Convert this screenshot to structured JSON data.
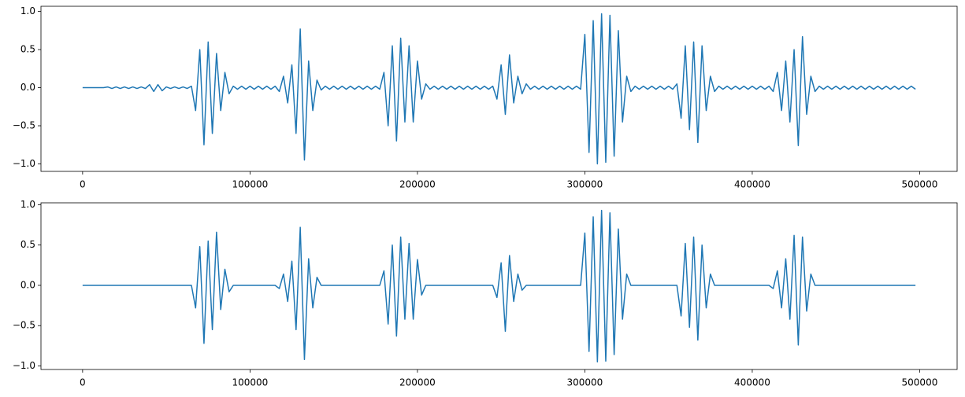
{
  "chart_data": [
    {
      "type": "line",
      "color": "#1f77b4",
      "x": [
        0,
        2500,
        5000,
        7500,
        10000,
        12500,
        15000,
        17500,
        20000,
        22500,
        25000,
        27500,
        30000,
        32500,
        35000,
        37500,
        40000,
        42500,
        45000,
        47500,
        50000,
        52500,
        55000,
        57500,
        60000,
        62500,
        65000,
        67500,
        70000,
        72500,
        75000,
        77500,
        80000,
        82500,
        85000,
        87500,
        90000,
        92500,
        95000,
        97500,
        100000,
        102500,
        105000,
        107500,
        110000,
        112500,
        115000,
        117500,
        120000,
        122500,
        125000,
        127500,
        130000,
        132500,
        135000,
        137500,
        140000,
        142500,
        145000,
        147500,
        150000,
        152500,
        155000,
        157500,
        160000,
        162500,
        165000,
        167500,
        170000,
        172500,
        175000,
        177500,
        180000,
        182500,
        185000,
        187500,
        190000,
        192500,
        195000,
        197500,
        200000,
        202500,
        205000,
        207500,
        210000,
        212500,
        215000,
        217500,
        220000,
        222500,
        225000,
        227500,
        230000,
        232500,
        235000,
        237500,
        240000,
        242500,
        245000,
        247500,
        250000,
        252500,
        255000,
        257500,
        260000,
        262500,
        265000,
        267500,
        270000,
        272500,
        275000,
        277500,
        280000,
        282500,
        285000,
        287500,
        290000,
        292500,
        295000,
        297500,
        300000,
        302500,
        305000,
        307500,
        310000,
        312500,
        315000,
        317500,
        320000,
        322500,
        325000,
        327500,
        330000,
        332500,
        335000,
        337500,
        340000,
        342500,
        345000,
        347500,
        350000,
        352500,
        355000,
        357500,
        360000,
        362500,
        365000,
        367500,
        370000,
        372500,
        375000,
        377500,
        380000,
        382500,
        385000,
        387500,
        390000,
        392500,
        395000,
        397500,
        400000,
        402500,
        405000,
        407500,
        410000,
        412500,
        415000,
        417500,
        420000,
        422500,
        425000,
        427500,
        430000,
        432500,
        435000,
        437500,
        440000,
        442500,
        445000,
        447500,
        450000,
        452500,
        455000,
        457500,
        460000,
        462500,
        465000,
        467500,
        470000,
        472500,
        475000,
        477500,
        480000,
        482500,
        485000,
        487500,
        490000,
        492500,
        495000,
        497500
      ],
      "values": [
        0,
        0,
        0,
        0,
        0,
        0,
        0.01,
        -0.01,
        0.01,
        -0.01,
        0.01,
        -0.01,
        0.01,
        -0.01,
        0.01,
        -0.01,
        0.04,
        -0.05,
        0.04,
        -0.04,
        0.01,
        -0.01,
        0.01,
        -0.01,
        0.01,
        -0.01,
        0.02,
        -0.3,
        0.5,
        -0.75,
        0.6,
        -0.6,
        0.45,
        -0.3,
        0.2,
        -0.08,
        0.02,
        -0.02,
        0.02,
        -0.02,
        0.02,
        -0.02,
        0.02,
        -0.02,
        0.02,
        -0.02,
        0.02,
        -0.05,
        0.15,
        -0.2,
        0.3,
        -0.6,
        0.77,
        -0.95,
        0.35,
        -0.3,
        0.1,
        -0.03,
        0.02,
        -0.02,
        0.02,
        -0.02,
        0.02,
        -0.02,
        0.02,
        -0.02,
        0.02,
        -0.02,
        0.02,
        -0.02,
        0.02,
        -0.02,
        0.2,
        -0.5,
        0.55,
        -0.7,
        0.65,
        -0.45,
        0.55,
        -0.45,
        0.35,
        -0.15,
        0.05,
        -0.02,
        0.02,
        -0.02,
        0.02,
        -0.02,
        0.02,
        -0.02,
        0.02,
        -0.02,
        0.02,
        -0.02,
        0.02,
        -0.02,
        0.02,
        -0.02,
        0.02,
        -0.15,
        0.3,
        -0.35,
        0.43,
        -0.2,
        0.15,
        -0.08,
        0.05,
        -0.02,
        0.02,
        -0.02,
        0.02,
        -0.02,
        0.02,
        -0.02,
        0.02,
        -0.02,
        0.02,
        -0.02,
        0.02,
        -0.02,
        0.7,
        -0.85,
        0.88,
        -1.0,
        0.97,
        -0.98,
        0.95,
        -0.9,
        0.75,
        -0.45,
        0.15,
        -0.05,
        0.02,
        -0.02,
        0.02,
        -0.02,
        0.02,
        -0.02,
        0.02,
        -0.02,
        0.02,
        -0.02,
        0.05,
        -0.4,
        0.55,
        -0.55,
        0.6,
        -0.72,
        0.55,
        -0.3,
        0.15,
        -0.05,
        0.02,
        -0.02,
        0.02,
        -0.02,
        0.02,
        -0.02,
        0.02,
        -0.02,
        0.02,
        -0.02,
        0.02,
        -0.02,
        0.02,
        -0.05,
        0.2,
        -0.3,
        0.35,
        -0.45,
        0.5,
        -0.76,
        0.67,
        -0.35,
        0.15,
        -0.05,
        0.02,
        -0.02,
        0.02,
        -0.02,
        0.02,
        -0.02,
        0.02,
        -0.02,
        0.02,
        -0.02,
        0.02,
        -0.02,
        0.02,
        -0.02,
        0.02,
        -0.02,
        0.02,
        -0.02,
        0.02,
        -0.02,
        0.02,
        -0.02,
        0.02,
        -0.02
      ],
      "xlim": [
        -24875,
        522375
      ],
      "ylim": [
        -1.0985,
        1.0685
      ],
      "xticks": [
        0,
        100000,
        200000,
        300000,
        400000,
        500000
      ],
      "yticks": [
        {
          "value": -1.0,
          "label": "−1.0"
        },
        {
          "value": -0.5,
          "label": "−0.5"
        },
        {
          "value": 0.0,
          "label": "0.0"
        },
        0.5,
        {
          "value": 1.0,
          "label": "1.0"
        }
      ]
    },
    {
      "type": "line",
      "color": "#1f77b4",
      "x": [
        0,
        2500,
        5000,
        7500,
        10000,
        12500,
        15000,
        17500,
        20000,
        22500,
        25000,
        27500,
        30000,
        32500,
        35000,
        37500,
        40000,
        42500,
        45000,
        47500,
        50000,
        52500,
        55000,
        57500,
        60000,
        62500,
        65000,
        67500,
        70000,
        72500,
        75000,
        77500,
        80000,
        82500,
        85000,
        87500,
        90000,
        92500,
        95000,
        97500,
        100000,
        102500,
        105000,
        107500,
        110000,
        112500,
        115000,
        117500,
        120000,
        122500,
        125000,
        127500,
        130000,
        132500,
        135000,
        137500,
        140000,
        142500,
        145000,
        147500,
        150000,
        152500,
        155000,
        157500,
        160000,
        162500,
        165000,
        167500,
        170000,
        172500,
        175000,
        177500,
        180000,
        182500,
        185000,
        187500,
        190000,
        192500,
        195000,
        197500,
        200000,
        202500,
        205000,
        207500,
        210000,
        212500,
        215000,
        217500,
        220000,
        222500,
        225000,
        227500,
        230000,
        232500,
        235000,
        237500,
        240000,
        242500,
        245000,
        247500,
        250000,
        252500,
        255000,
        257500,
        260000,
        262500,
        265000,
        267500,
        270000,
        272500,
        275000,
        277500,
        280000,
        282500,
        285000,
        287500,
        290000,
        292500,
        295000,
        297500,
        300000,
        302500,
        305000,
        307500,
        310000,
        312500,
        315000,
        317500,
        320000,
        322500,
        325000,
        327500,
        330000,
        332500,
        335000,
        337500,
        340000,
        342500,
        345000,
        347500,
        350000,
        352500,
        355000,
        357500,
        360000,
        362500,
        365000,
        367500,
        370000,
        372500,
        375000,
        377500,
        380000,
        382500,
        385000,
        387500,
        390000,
        392500,
        395000,
        397500,
        400000,
        402500,
        405000,
        407500,
        410000,
        412500,
        415000,
        417500,
        420000,
        422500,
        425000,
        427500,
        430000,
        432500,
        435000,
        437500,
        440000,
        442500,
        445000,
        447500,
        450000,
        452500,
        455000,
        457500,
        460000,
        462500,
        465000,
        467500,
        470000,
        472500,
        475000,
        477500,
        480000,
        482500,
        485000,
        487500,
        490000,
        492500,
        495000,
        497500
      ],
      "values": [
        0,
        0,
        0,
        0,
        0,
        0,
        0,
        0,
        0,
        0,
        0,
        0,
        0,
        0,
        0,
        0,
        0,
        0,
        0,
        0,
        0,
        0,
        0,
        0,
        0,
        0,
        0,
        -0.28,
        0.48,
        -0.72,
        0.55,
        -0.55,
        0.66,
        -0.3,
        0.2,
        -0.08,
        0,
        0,
        0,
        0,
        0,
        0,
        0,
        0,
        0,
        0,
        0,
        -0.04,
        0.14,
        -0.2,
        0.3,
        -0.55,
        0.72,
        -0.92,
        0.33,
        -0.28,
        0.1,
        0,
        0,
        0,
        0,
        0,
        0,
        0,
        0,
        0,
        0,
        0,
        0,
        0,
        0,
        0,
        0.18,
        -0.48,
        0.5,
        -0.63,
        0.6,
        -0.42,
        0.52,
        -0.42,
        0.32,
        -0.12,
        0,
        0,
        0,
        0,
        0,
        0,
        0,
        0,
        0,
        0,
        0,
        0,
        0,
        0,
        0,
        0,
        0,
        -0.15,
        0.28,
        -0.57,
        0.37,
        -0.2,
        0.14,
        -0.06,
        0,
        0,
        0,
        0,
        0,
        0,
        0,
        0,
        0,
        0,
        0,
        0,
        0,
        0,
        0.65,
        -0.82,
        0.85,
        -0.95,
        0.93,
        -0.94,
        0.9,
        -0.86,
        0.7,
        -0.42,
        0.14,
        0,
        0,
        0,
        0,
        0,
        0,
        0,
        0,
        0,
        0,
        0,
        0,
        -0.38,
        0.52,
        -0.52,
        0.6,
        -0.68,
        0.5,
        -0.28,
        0.14,
        0,
        0,
        0,
        0,
        0,
        0,
        0,
        0,
        0,
        0,
        0,
        0,
        0,
        0,
        -0.04,
        0.18,
        -0.28,
        0.33,
        -0.42,
        0.62,
        -0.74,
        0.6,
        -0.32,
        0.14,
        0,
        0,
        0,
        0,
        0,
        0,
        0,
        0,
        0,
        0,
        0,
        0,
        0,
        0,
        0,
        0,
        0,
        0,
        0,
        0,
        0,
        0,
        0,
        0,
        0
      ],
      "xlim": [
        -24875,
        522375
      ],
      "ylim": [
        -1.044,
        1.024
      ],
      "xticks": [
        0,
        100000,
        200000,
        300000,
        400000,
        500000
      ],
      "yticks": [
        {
          "value": -1.0,
          "label": "−1.0"
        },
        {
          "value": -0.5,
          "label": "−0.5"
        },
        {
          "value": 0.0,
          "label": "0.0"
        },
        0.5,
        {
          "value": 1.0,
          "label": "1.0"
        }
      ]
    }
  ]
}
